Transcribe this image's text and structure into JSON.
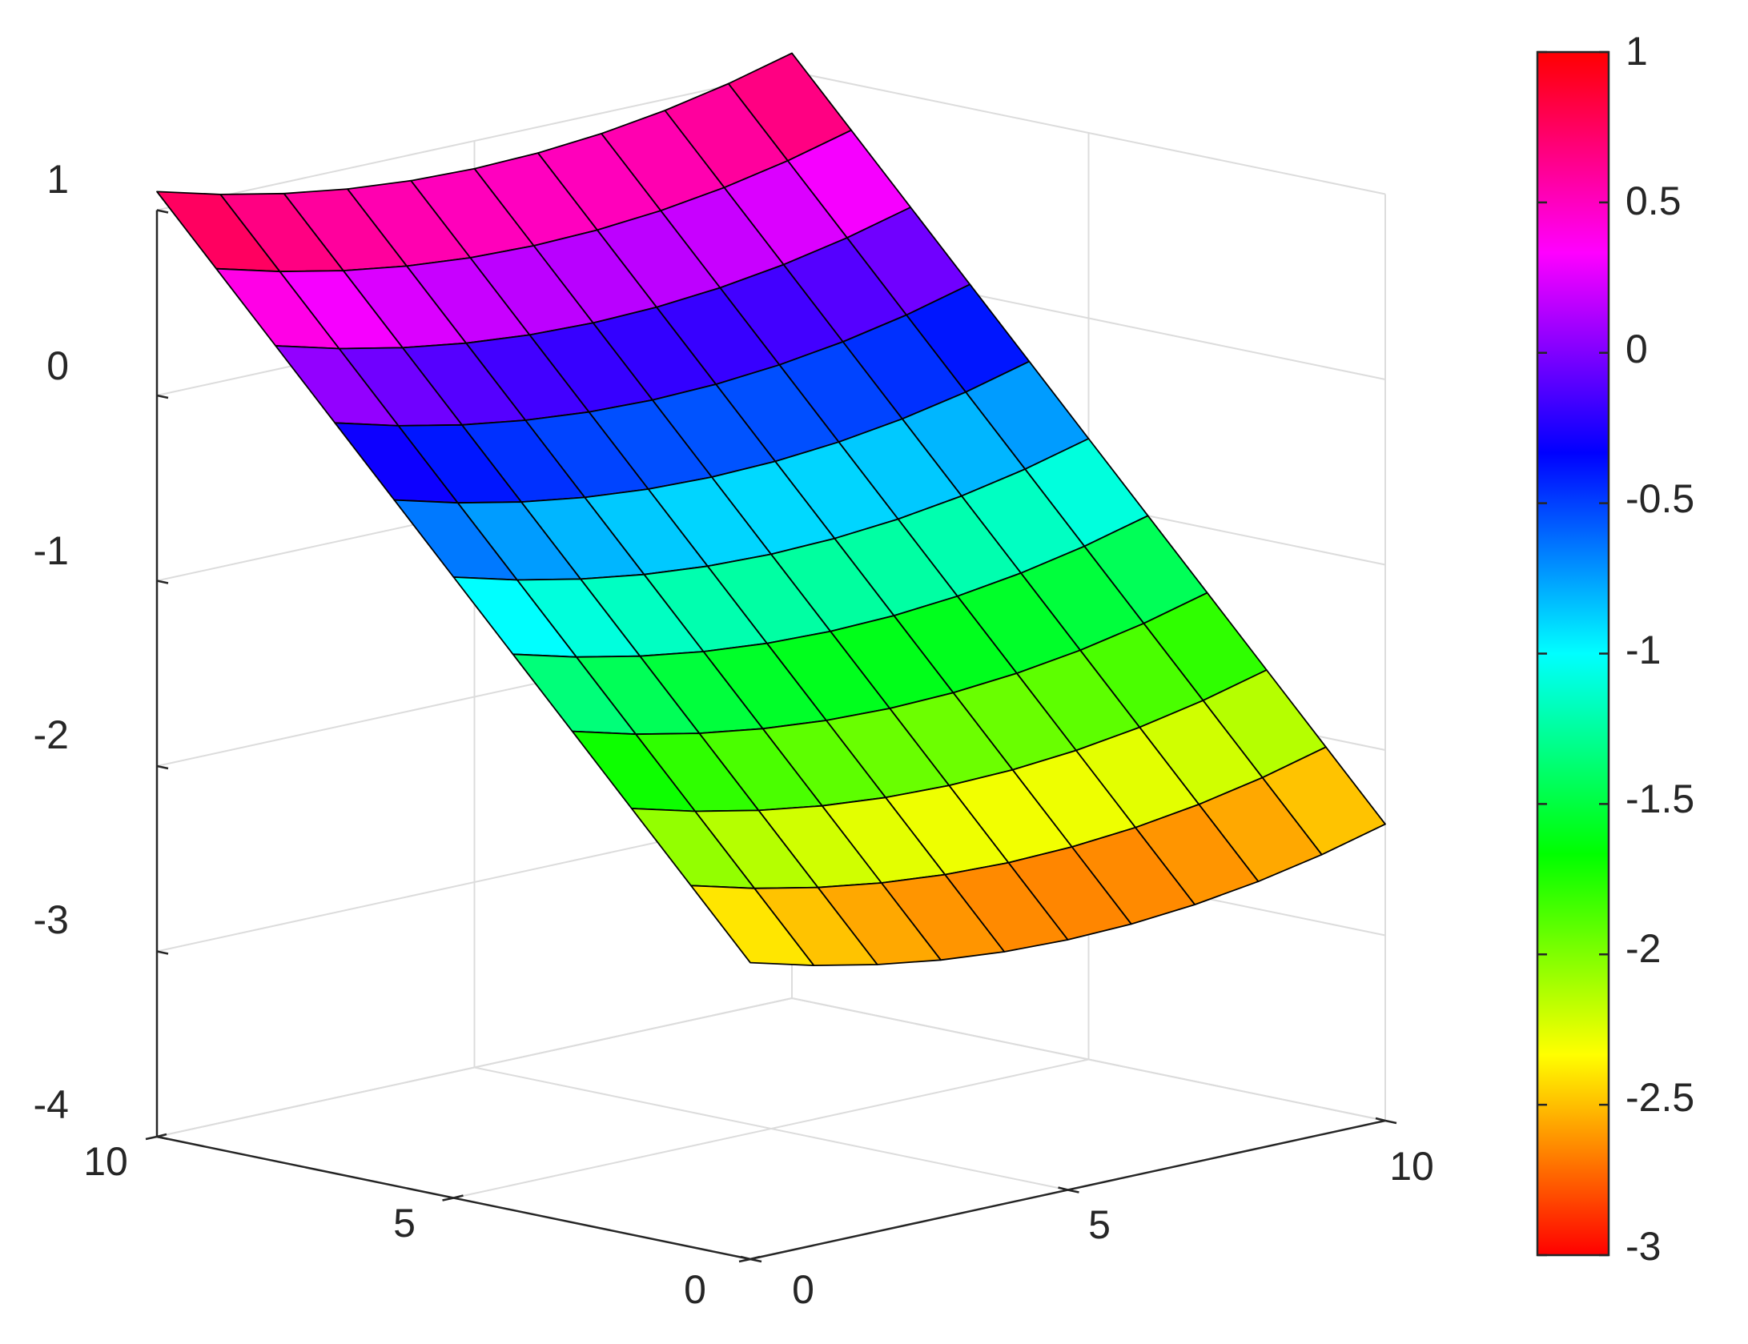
{
  "chart_data": {
    "type": "surface",
    "title": "",
    "xlabel": "",
    "ylabel": "",
    "zlabel": "",
    "x": [
      0,
      1,
      2,
      3,
      4,
      5,
      6,
      7,
      8,
      9,
      10
    ],
    "y": [
      0,
      1,
      2,
      3,
      4,
      5,
      6,
      7,
      8,
      9,
      10
    ],
    "z_formula_note_removed": null,
    "z": [
      [
        -2.4,
        -2.49,
        -2.56,
        -2.61,
        -2.64,
        -2.65,
        -2.64,
        -2.61,
        -2.56,
        -2.49,
        -2.4
      ],
      [
        -2.05,
        -2.14,
        -2.21,
        -2.26,
        -2.29,
        -2.3,
        -2.29,
        -2.26,
        -2.21,
        -2.14,
        -2.05
      ],
      [
        -1.7,
        -1.79,
        -1.86,
        -1.91,
        -1.94,
        -1.95,
        -1.94,
        -1.91,
        -1.86,
        -1.79,
        -1.7
      ],
      [
        -1.35,
        -1.44,
        -1.51,
        -1.56,
        -1.59,
        -1.6,
        -1.59,
        -1.56,
        -1.51,
        -1.44,
        -1.35
      ],
      [
        -1.0,
        -1.09,
        -1.16,
        -1.21,
        -1.24,
        -1.25,
        -1.24,
        -1.21,
        -1.16,
        -1.09,
        -1.0
      ],
      [
        -0.65,
        -0.74,
        -0.81,
        -0.86,
        -0.89,
        -0.9,
        -0.89,
        -0.86,
        -0.81,
        -0.74,
        -0.65
      ],
      [
        -0.3,
        -0.39,
        -0.46,
        -0.51,
        -0.54,
        -0.55,
        -0.54,
        -0.51,
        -0.46,
        -0.39,
        -0.3
      ],
      [
        0.05,
        -0.04,
        -0.11,
        -0.16,
        -0.19,
        -0.2,
        -0.19,
        -0.16,
        -0.11,
        -0.04,
        0.05
      ],
      [
        0.4,
        0.31,
        0.24,
        0.19,
        0.16,
        0.15,
        0.16,
        0.19,
        0.24,
        0.31,
        0.4
      ],
      [
        0.75,
        0.66,
        0.59,
        0.54,
        0.51,
        0.5,
        0.51,
        0.54,
        0.59,
        0.66,
        0.75
      ],
      [
        1.1,
        1.01,
        0.94,
        0.89,
        0.86,
        0.85,
        0.86,
        0.89,
        0.94,
        1.01,
        1.1
      ]
    ],
    "xlim": [
      0,
      10
    ],
    "ylim": [
      0,
      10
    ],
    "zlim": [
      -4,
      1
    ],
    "x_ticks": [
      "0",
      "5",
      "10"
    ],
    "y_ticks": [
      "0",
      "5",
      "10"
    ],
    "z_ticks": [
      "-4",
      "-3",
      "-2",
      "-1",
      "0",
      "1"
    ],
    "grid": true,
    "colormap": "hsv",
    "colorbar": {
      "position": "right",
      "clim": [
        -3,
        1
      ],
      "ticks": [
        "-3",
        "-2.5",
        "-2",
        "-1.5",
        "-1",
        "-0.5",
        "0",
        "0.5",
        "1"
      ]
    }
  }
}
